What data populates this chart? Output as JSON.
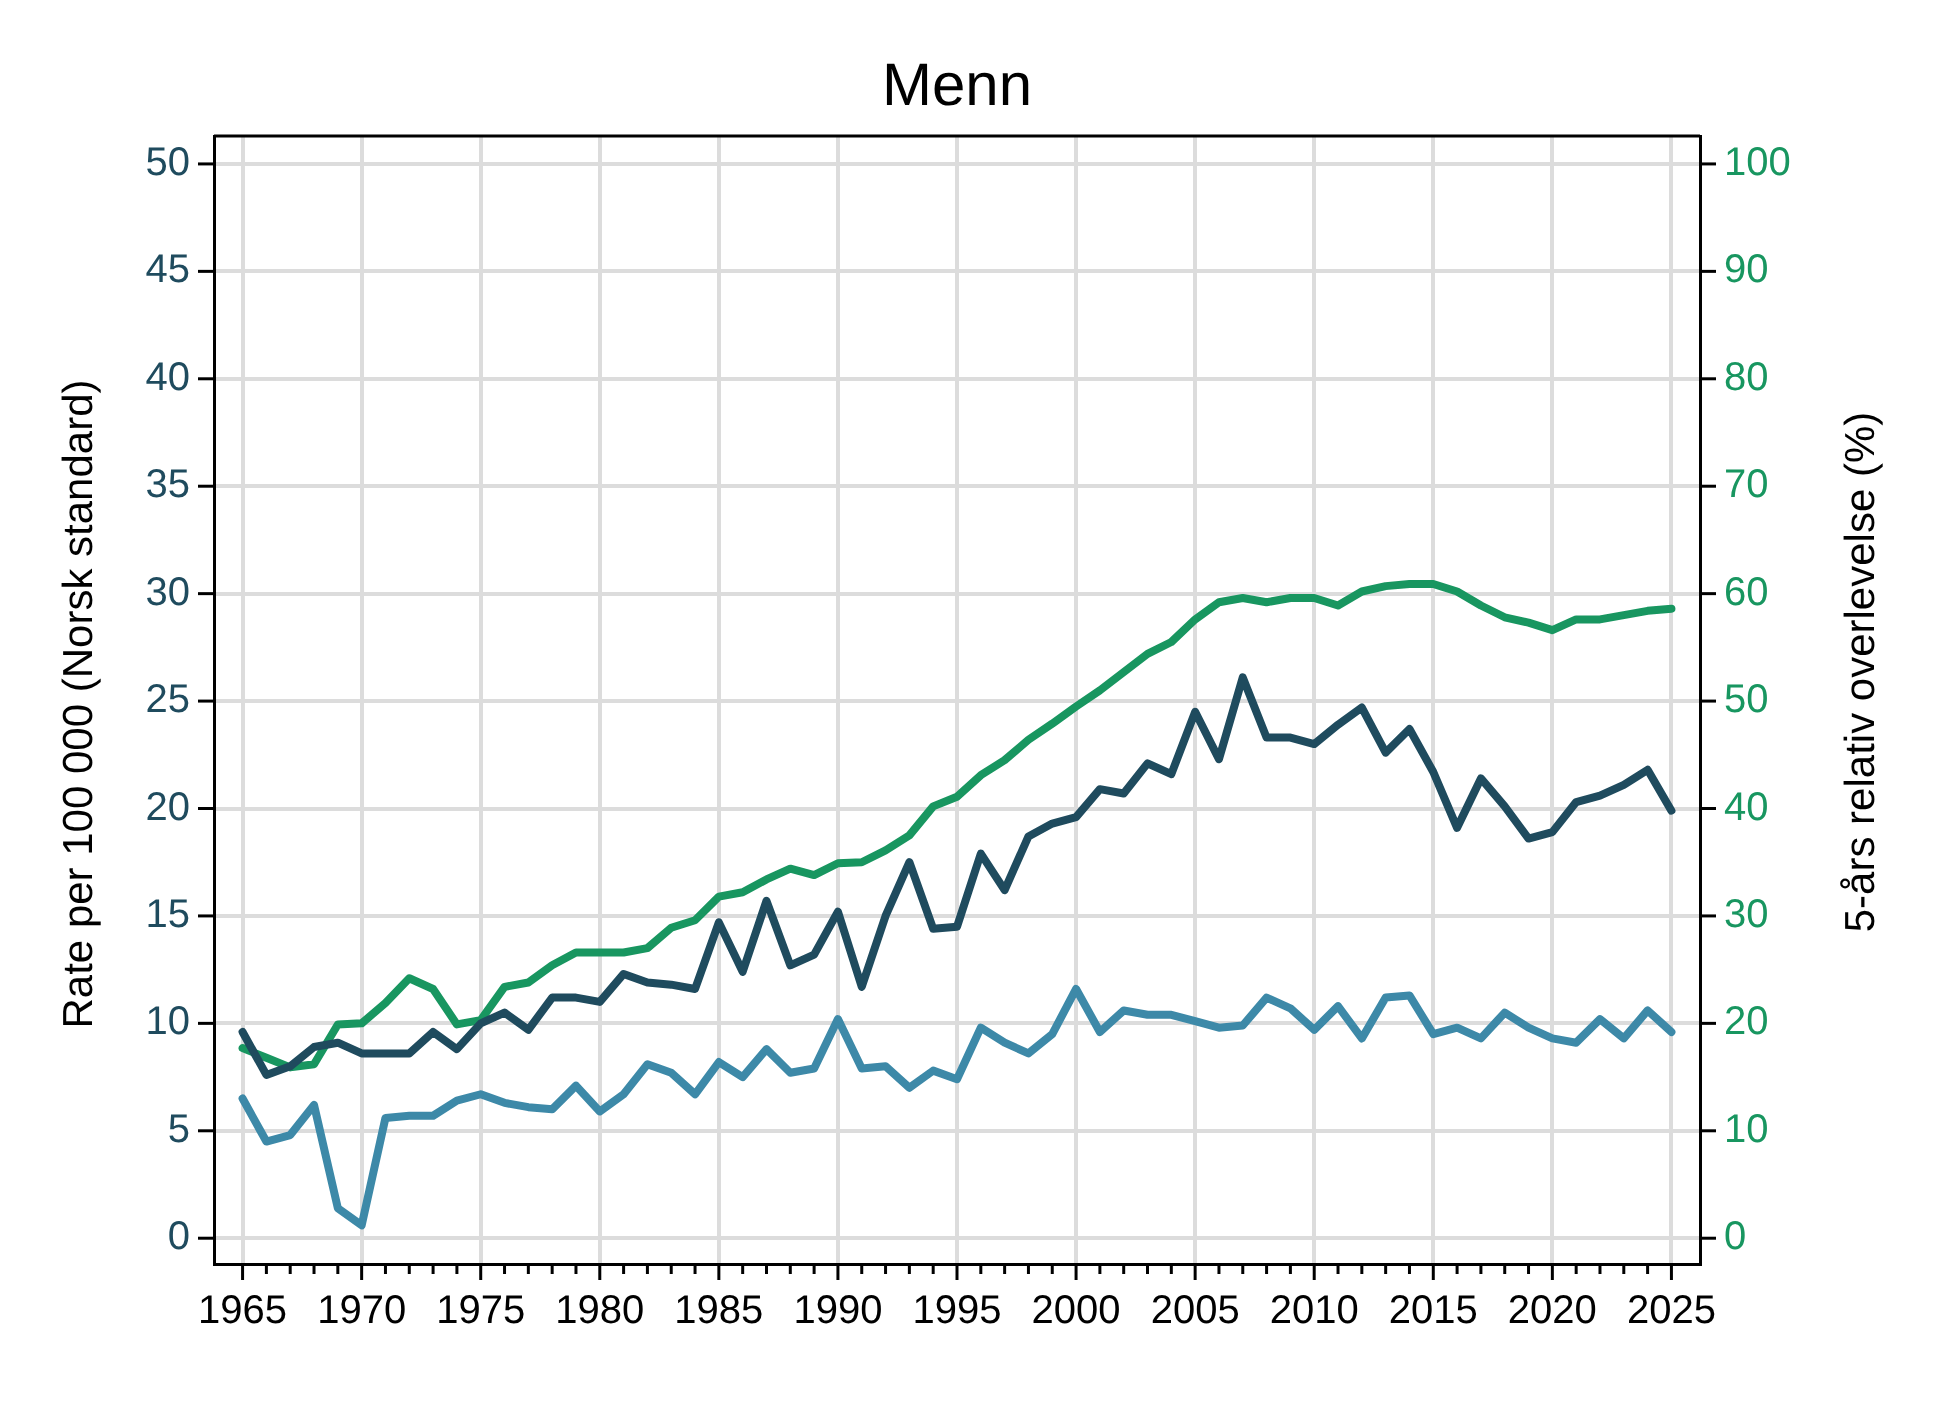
{
  "chart_data": {
    "type": "line",
    "title": "Menn",
    "ylabel": "Rate per 100 000 (Norsk standard)",
    "y2label": "5-års relativ overlevelse (%)",
    "x": [
      1965,
      1966,
      1967,
      1968,
      1969,
      1970,
      1971,
      1972,
      1973,
      1974,
      1975,
      1976,
      1977,
      1978,
      1979,
      1980,
      1981,
      1982,
      1983,
      1984,
      1985,
      1986,
      1987,
      1988,
      1989,
      1990,
      1991,
      1992,
      1993,
      1994,
      1995,
      1996,
      1997,
      1998,
      1999,
      2000,
      2001,
      2002,
      2003,
      2004,
      2005,
      2006,
      2007,
      2008,
      2009,
      2010,
      2011,
      2012,
      2013,
      2014,
      2015,
      2016,
      2017,
      2018,
      2019,
      2020,
      2021,
      2022,
      2023,
      2024,
      2025
    ],
    "series": [
      {
        "color": "#1f4b5e",
        "values": [
          9.6,
          7.6,
          8.0,
          8.9,
          9.1,
          8.6,
          8.6,
          8.6,
          9.6,
          8.8,
          10.0,
          10.5,
          9.7,
          11.2,
          11.2,
          11.0,
          12.3,
          11.9,
          11.8,
          11.6,
          14.7,
          12.4,
          15.7,
          12.7,
          13.2,
          15.2,
          11.7,
          15.0,
          17.5,
          14.4,
          14.5,
          17.9,
          16.2,
          18.7,
          19.3,
          19.6,
          20.9,
          20.7,
          22.1,
          21.6,
          24.5,
          22.3,
          26.1,
          23.3,
          23.3,
          23.0,
          23.9,
          24.7,
          22.6,
          23.7,
          21.7,
          19.1,
          21.4,
          20.1,
          18.6,
          18.9,
          20.3,
          20.6,
          21.1,
          21.8,
          19.9
        ]
      },
      {
        "color": "#3d89a8",
        "values": [
          6.5,
          4.5,
          4.8,
          6.2,
          1.4,
          0.6,
          5.6,
          5.7,
          5.7,
          6.4,
          6.7,
          6.3,
          6.1,
          6.0,
          7.1,
          5.9,
          6.7,
          8.1,
          7.7,
          6.7,
          8.2,
          7.5,
          8.8,
          7.7,
          7.9,
          10.2,
          7.9,
          8.0,
          7.0,
          7.8,
          7.4,
          9.8,
          9.1,
          8.6,
          9.5,
          11.6,
          9.6,
          10.6,
          10.4,
          10.4,
          10.1,
          9.8,
          9.9,
          11.2,
          10.7,
          9.7,
          10.8,
          9.3,
          11.2,
          11.3,
          9.5,
          9.8,
          9.3,
          10.5,
          9.8,
          9.3,
          9.1,
          10.2,
          9.3,
          10.6,
          9.6
        ]
      },
      {
        "color": "#189660",
        "axis": "y2",
        "values": [
          17.7,
          16.8,
          15.9,
          16.2,
          19.9,
          20.0,
          21.9,
          24.2,
          23.2,
          19.9,
          20.3,
          23.4,
          23.8,
          25.4,
          26.6,
          26.6,
          26.6,
          27.0,
          28.9,
          29.6,
          31.8,
          32.2,
          33.4,
          34.4,
          33.8,
          34.9,
          35.0,
          36.1,
          37.5,
          40.2,
          41.1,
          43.1,
          44.5,
          46.4,
          47.9,
          49.5,
          51.0,
          52.7,
          54.4,
          55.5,
          57.6,
          59.2,
          59.6,
          59.2,
          59.6,
          59.6,
          58.9,
          60.2,
          60.7,
          60.9,
          60.9,
          60.2,
          58.9,
          57.8,
          57.3,
          56.6,
          57.6,
          57.6,
          58.0,
          58.4,
          58.6
        ]
      }
    ],
    "xlim": [
      1963.8,
      2026.2
    ],
    "ylim": [
      -1.2,
      51.3
    ],
    "y2lim": [
      -2.4,
      102.6
    ],
    "xticks": [
      1965,
      {
        "value": 1966,
        "label": null
      },
      {
        "value": 1967,
        "label": null
      },
      {
        "value": 1968,
        "label": null
      },
      {
        "value": 1969,
        "label": null
      },
      1970,
      {
        "value": 1971,
        "label": null
      },
      {
        "value": 1972,
        "label": null
      },
      {
        "value": 1973,
        "label": null
      },
      {
        "value": 1974,
        "label": null
      },
      1975,
      {
        "value": 1976,
        "label": null
      },
      {
        "value": 1977,
        "label": null
      },
      {
        "value": 1978,
        "label": null
      },
      {
        "value": 1979,
        "label": null
      },
      1980,
      {
        "value": 1981,
        "label": null
      },
      {
        "value": 1982,
        "label": null
      },
      {
        "value": 1983,
        "label": null
      },
      {
        "value": 1984,
        "label": null
      },
      1985,
      {
        "value": 1986,
        "label": null
      },
      {
        "value": 1987,
        "label": null
      },
      {
        "value": 1988,
        "label": null
      },
      {
        "value": 1989,
        "label": null
      },
      1990,
      {
        "value": 1991,
        "label": null
      },
      {
        "value": 1992,
        "label": null
      },
      {
        "value": 1993,
        "label": null
      },
      {
        "value": 1994,
        "label": null
      },
      1995,
      {
        "value": 1996,
        "label": null
      },
      {
        "value": 1997,
        "label": null
      },
      {
        "value": 1998,
        "label": null
      },
      {
        "value": 1999,
        "label": null
      },
      2000,
      {
        "value": 2001,
        "label": null
      },
      {
        "value": 2002,
        "label": null
      },
      {
        "value": 2003,
        "label": null
      },
      {
        "value": 2004,
        "label": null
      },
      2005,
      {
        "value": 2006,
        "label": null
      },
      {
        "value": 2007,
        "label": null
      },
      {
        "value": 2008,
        "label": null
      },
      {
        "value": 2009,
        "label": null
      },
      2010,
      {
        "value": 2011,
        "label": null
      },
      {
        "value": 2012,
        "label": null
      },
      {
        "value": 2013,
        "label": null
      },
      {
        "value": 2014,
        "label": null
      },
      2015,
      {
        "value": 2016,
        "label": null
      },
      {
        "value": 2017,
        "label": null
      },
      {
        "value": 2018,
        "label": null
      },
      {
        "value": 2019,
        "label": null
      },
      2020,
      {
        "value": 2021,
        "label": null
      },
      {
        "value": 2022,
        "label": null
      },
      {
        "value": 2023,
        "label": null
      },
      {
        "value": 2024,
        "label": null
      },
      2025
    ],
    "yticks": [
      0,
      5,
      10,
      15,
      20,
      25,
      30,
      35,
      40,
      45,
      50
    ],
    "y2ticks": [
      0,
      10,
      20,
      30,
      40,
      50,
      60,
      70,
      80,
      90,
      100
    ],
    "grid": true,
    "line_style": "solid"
  }
}
